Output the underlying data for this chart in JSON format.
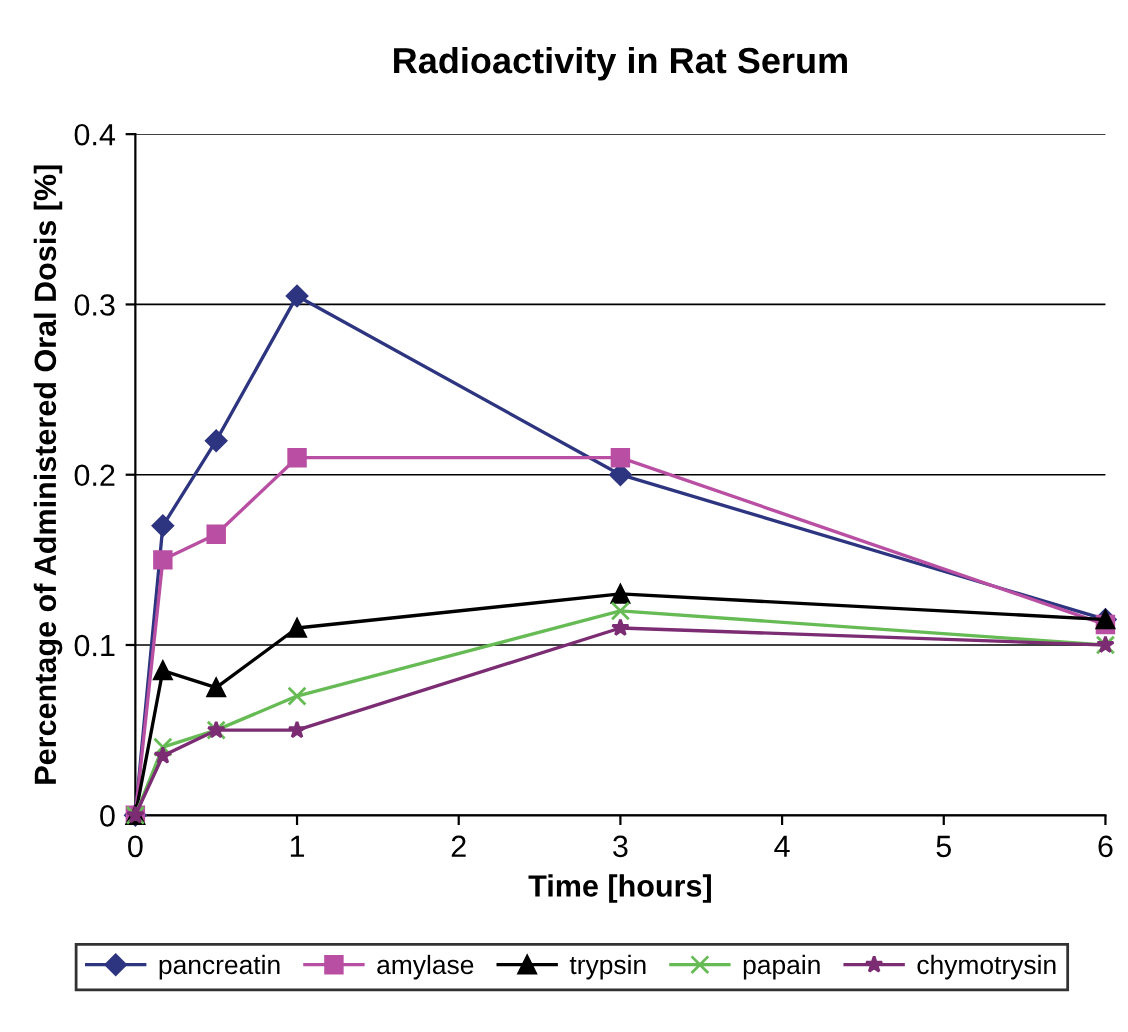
{
  "chart_data": {
    "type": "line",
    "title": "Radioactivity in Rat Serum",
    "xlabel": "Time [hours]",
    "ylabel": "Percentage of Administered Oral Dosis [%]",
    "x": [
      0,
      0.17,
      0.5,
      1,
      3,
      6
    ],
    "series": [
      {
        "name": "pancreatin",
        "color": "#2e3580",
        "marker": "diamond",
        "values": [
          0,
          0.17,
          0.22,
          0.305,
          0.2,
          0.115
        ]
      },
      {
        "name": "amylase",
        "color": "#b94fa3",
        "marker": "square",
        "values": [
          0,
          0.15,
          0.165,
          0.21,
          0.21,
          0.112
        ]
      },
      {
        "name": "trypsin",
        "color": "#000000",
        "marker": "triangle",
        "values": [
          0,
          0.085,
          0.075,
          0.11,
          0.13,
          0.115
        ]
      },
      {
        "name": "papain",
        "color": "#66bb55",
        "marker": "cross",
        "values": [
          0,
          0.04,
          0.05,
          0.07,
          0.12,
          0.1
        ]
      },
      {
        "name": "chymotrysin",
        "color": "#7b2c72",
        "marker": "star",
        "values": [
          0,
          0.035,
          0.05,
          0.05,
          0.11,
          0.1
        ]
      }
    ],
    "xlim": [
      0,
      6
    ],
    "xticks": [
      0,
      1,
      2,
      3,
      4,
      5,
      6
    ],
    "ylim": [
      0,
      0.4
    ],
    "yticks": [
      0,
      0.1,
      0.2,
      0.3,
      0.4
    ],
    "grid": "y",
    "legend": "bottom",
    "line_style": "solid"
  }
}
